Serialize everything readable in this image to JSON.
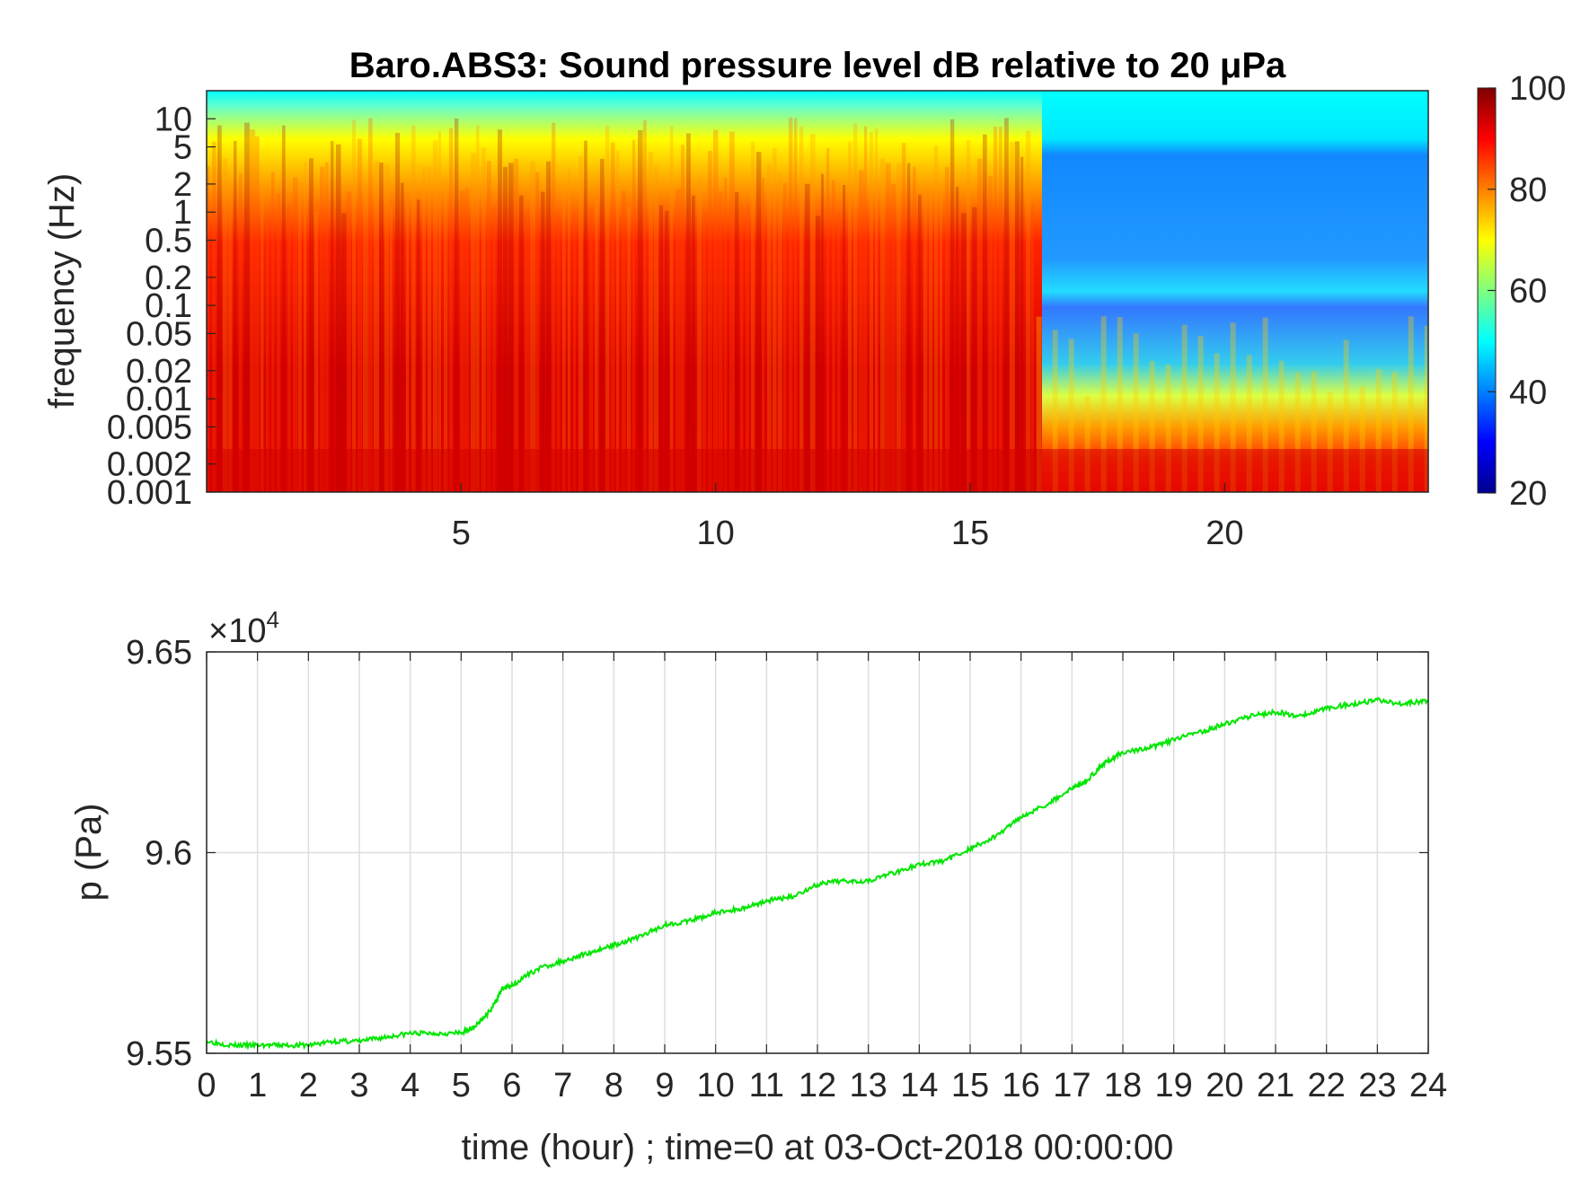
{
  "chart_data": [
    {
      "type": "heatmap",
      "title": "Baro.ABS3: Sound pressure level dB relative to 20 μPa",
      "ylabel": "frequency (Hz)",
      "xlabel": "",
      "x_ticks": [
        5,
        10,
        15,
        20
      ],
      "y_ticks": [
        "10",
        "5",
        "2",
        "1",
        "0.5",
        "0.2",
        "0.1",
        "0.05",
        "0.02",
        "0.01",
        "0.005",
        "0.002",
        "0.001"
      ],
      "y_tick_values": [
        10,
        5,
        2,
        1,
        0.5,
        0.2,
        0.1,
        0.05,
        0.02,
        0.01,
        0.005,
        0.002,
        0.001
      ],
      "xlim": [
        0,
        24
      ],
      "ylim": [
        0.001,
        20
      ],
      "y_scale": "log",
      "colormap": "jet",
      "colorbar": {
        "ticks": [
          100,
          80,
          60,
          40,
          20
        ],
        "clim": [
          20,
          100
        ]
      },
      "description_regions": {
        "quiet_onset_hour": 16.3,
        "high_level_db": 95,
        "quiet_level_db": 45
      }
    },
    {
      "type": "line",
      "title": "",
      "xlabel": "time (hour) ; time=0 at 03-Oct-2018 00:00:00",
      "ylabel": "p (Pa)",
      "exponent_label": "×10",
      "exponent_power": "4",
      "xlim": [
        0,
        24
      ],
      "ylim": [
        9.55,
        9.65
      ],
      "x_ticks": [
        "0",
        "1",
        "2",
        "3",
        "4",
        "5",
        "6",
        "7",
        "8",
        "9",
        "10",
        "11",
        "12",
        "13",
        "14",
        "15",
        "16",
        "17",
        "18",
        "19",
        "20",
        "21",
        "22",
        "23",
        "24"
      ],
      "y_ticks": [
        "9.65",
        "9.6",
        "9.55"
      ],
      "grid": true,
      "line_color": "#00e600",
      "series": [
        {
          "x": [
            0,
            0.5,
            1,
            1.5,
            2,
            2.5,
            3,
            3.5,
            4,
            4.5,
            5,
            5.3,
            5.6,
            5.8,
            6,
            6.5,
            7,
            7.5,
            8,
            8.5,
            9,
            9.5,
            10,
            10.5,
            11,
            11.5,
            12,
            12.5,
            13,
            13.5,
            14,
            14.5,
            15,
            15.5,
            16,
            16.5,
            17,
            17.3,
            17.6,
            18,
            18.5,
            19,
            19.5,
            20,
            20.5,
            21,
            21.5,
            22,
            22.5,
            23,
            23.5,
            24
          ],
          "y": [
            9.553,
            9.552,
            9.552,
            9.552,
            9.552,
            9.553,
            9.553,
            9.554,
            9.555,
            9.555,
            9.555,
            9.557,
            9.561,
            9.566,
            9.567,
            9.571,
            9.573,
            9.575,
            9.577,
            9.579,
            9.582,
            9.583,
            9.585,
            9.586,
            9.588,
            9.589,
            9.592,
            9.593,
            9.593,
            9.595,
            9.597,
            9.598,
            9.601,
            9.604,
            9.609,
            9.612,
            9.616,
            9.618,
            9.622,
            9.625,
            9.626,
            9.628,
            9.63,
            9.632,
            9.634,
            9.635,
            9.634,
            9.636,
            9.637,
            9.638,
            9.637,
            9.638
          ]
        }
      ]
    }
  ]
}
